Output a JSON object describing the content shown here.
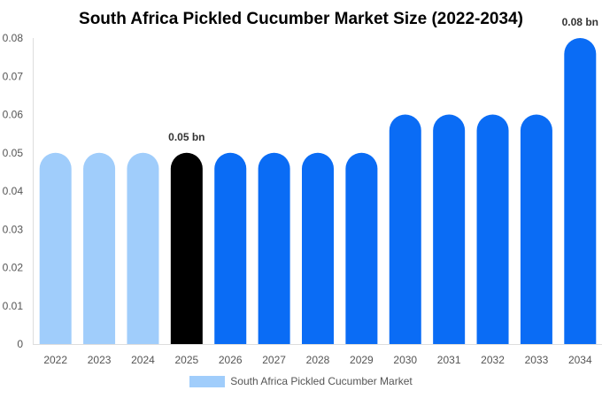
{
  "chart_data": {
    "type": "bar",
    "title": "South Africa Pickled Cucumber Market Size (2022-2034)",
    "categories": [
      "2022",
      "2023",
      "2024",
      "2025",
      "2026",
      "2027",
      "2028",
      "2029",
      "2030",
      "2031",
      "2032",
      "2033",
      "2034"
    ],
    "series": [
      {
        "name": "South Africa Pickled Cucumber Market",
        "values": [
          0.05,
          0.05,
          0.05,
          0.05,
          0.05,
          0.05,
          0.05,
          0.05,
          0.06,
          0.06,
          0.06,
          0.06,
          0.08
        ]
      }
    ],
    "ylim": [
      0,
      0.08
    ],
    "yticks": [
      "0",
      "0.01",
      "0.02",
      "0.03",
      "0.04",
      "0.05",
      "0.06",
      "0.07",
      "0.08"
    ],
    "data_labels": [
      {
        "category": "2025",
        "text": "0.05 bn"
      },
      {
        "category": "2034",
        "text": "0.08 bn"
      }
    ],
    "bar_colors": [
      "#a0cdfb",
      "#a0cdfb",
      "#a0cdfb",
      "#000000",
      "#0a6cf5",
      "#0a6cf5",
      "#0a6cf5",
      "#0a6cf5",
      "#0a6cf5",
      "#0a6cf5",
      "#0a6cf5",
      "#0a6cf5",
      "#0a6cf5"
    ],
    "legend_color": "#a0cdfb",
    "legend_position": "bottom",
    "grid": false
  }
}
